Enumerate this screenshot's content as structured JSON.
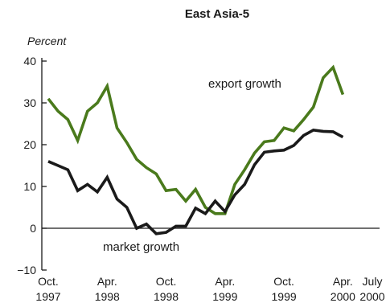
{
  "chart_data": {
    "type": "line",
    "title": "East Asia-5",
    "ylabel": "Percent",
    "xlabel": "",
    "ylim": [
      -10,
      40
    ],
    "yticks": [
      -10,
      0,
      10,
      20,
      30,
      40
    ],
    "xlim": [
      0,
      33
    ],
    "xticks": [
      {
        "pos": 0,
        "line1": "Oct.",
        "line2": "1997"
      },
      {
        "pos": 6,
        "line1": "Apr.",
        "line2": "1998"
      },
      {
        "pos": 12,
        "line1": "Oct.",
        "line2": "1998"
      },
      {
        "pos": 18,
        "line1": "Apr.",
        "line2": "1999"
      },
      {
        "pos": 24,
        "line1": "Oct.",
        "line2": "1999"
      },
      {
        "pos": 30,
        "line1": "Apr.",
        "line2": "2000"
      },
      {
        "pos": 33,
        "line1": "July",
        "line2": "2000"
      }
    ],
    "grid": false,
    "series": [
      {
        "name": "export growth",
        "color": "#4a7a1c",
        "values": [
          31,
          28,
          26,
          21,
          28,
          30,
          34,
          24,
          20.5,
          16.5,
          14.5,
          13,
          9,
          9.3,
          6.5,
          9.3,
          5,
          3.5,
          3.5,
          10.5,
          14,
          18,
          20.7,
          21,
          24,
          23.3,
          26,
          29,
          36,
          38.5,
          32
        ]
      },
      {
        "name": "market growth",
        "color": "#1a1a1a",
        "values": [
          16,
          15,
          14,
          9,
          10.5,
          8.7,
          12.2,
          7,
          5,
          0,
          1,
          -1.3,
          -1,
          0.5,
          0.5,
          4.8,
          3.5,
          6.5,
          4,
          8,
          10.5,
          15.2,
          18.2,
          18.5,
          18.7,
          19.8,
          22.2,
          23.5,
          23.2,
          23.1,
          21.8
        ]
      }
    ],
    "annotations": [
      {
        "series": 0,
        "text": "export growth"
      },
      {
        "series": 1,
        "text": "market growth"
      }
    ]
  }
}
